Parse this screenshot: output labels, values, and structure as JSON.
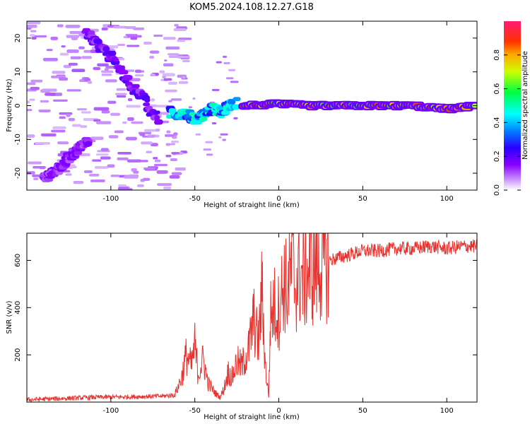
{
  "title": "KOM5.2024.108.12.27.G18",
  "chart_data": [
    {
      "type": "heatmap",
      "xlabel": "Height of straight line (km)",
      "ylabel": "Frequency (Hz)",
      "xlim": [
        -150,
        118
      ],
      "ylim": [
        -25,
        25
      ],
      "x_ticks": [
        -100,
        -50,
        0,
        50,
        100
      ],
      "y_ticks": [
        -20,
        -10,
        0,
        10,
        20
      ],
      "colorbar": {
        "label": "Normalized spectral amplitude",
        "range": [
          0,
          1
        ],
        "ticks": [
          0.0,
          0.2,
          0.4,
          0.6,
          0.8
        ]
      },
      "features": [
        {
          "name": "descending ridge",
          "x": [
            -115,
            -104,
            -97,
            -92,
            -86,
            -80,
            -76,
            -71
          ],
          "y": [
            22,
            16,
            13,
            8,
            5,
            2,
            -2,
            -4
          ],
          "amplitude": 0.15
        },
        {
          "name": "ridge",
          "x": [
            -140,
            -130,
            -122,
            -113
          ],
          "y": [
            -22,
            -18,
            -14,
            -10
          ],
          "amplitude": 0.12
        },
        {
          "name": "transition band",
          "x": [
            -65,
            -60,
            -55,
            -50,
            -45,
            -40,
            -35,
            -30,
            -25
          ],
          "y": [
            -2,
            -3,
            -2,
            -4,
            -3,
            -1,
            -2,
            0,
            1
          ],
          "amplitude": 0.35
        },
        {
          "name": "stable line",
          "x": [
            -20,
            0,
            20,
            40,
            60,
            80,
            100,
            118
          ],
          "y": [
            0,
            0.5,
            0,
            0,
            0,
            0,
            -1,
            0
          ],
          "amplitude": 0.75
        }
      ]
    },
    {
      "type": "line",
      "xlabel": "Height of straight line (km)",
      "ylabel": "SNR (v/v)",
      "xlim": [
        -150,
        118
      ],
      "ylim": [
        0,
        715
      ],
      "x_ticks": [
        -100,
        -50,
        0,
        50,
        100
      ],
      "y_ticks": [
        200,
        400,
        600
      ],
      "color": "#e8322e",
      "series": [
        {
          "x": [
            -150,
            -130,
            -110,
            -90,
            -70,
            -62,
            -58,
            -55,
            -52,
            -50,
            -48,
            -45,
            -42,
            -40,
            -38,
            -35,
            -33,
            -30,
            -28,
            -25,
            -22,
            -20,
            -18,
            -15,
            -12,
            -10,
            -8,
            -6,
            -5,
            -3,
            0,
            3,
            5,
            8,
            10,
            12,
            15,
            18,
            20,
            25,
            30,
            40,
            50,
            60,
            70,
            80,
            90,
            100,
            110,
            118
          ],
          "y": [
            10,
            15,
            20,
            22,
            25,
            30,
            100,
            200,
            150,
            240,
            120,
            180,
            80,
            60,
            40,
            20,
            50,
            130,
            100,
            170,
            150,
            190,
            220,
            350,
            250,
            480,
            150,
            25,
            360,
            410,
            380,
            520,
            470,
            580,
            500,
            540,
            520,
            570,
            560,
            590,
            600,
            620,
            640,
            640,
            650,
            650,
            660,
            650,
            660,
            660
          ]
        }
      ]
    }
  ]
}
